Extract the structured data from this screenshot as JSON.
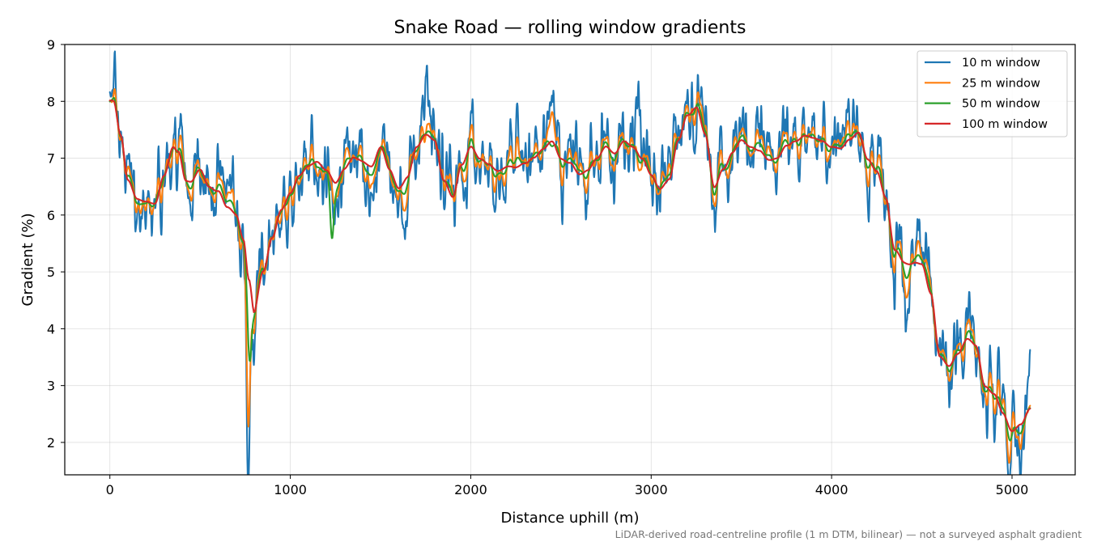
{
  "chart_data": {
    "type": "line",
    "title": "Snake Road — rolling window gradients",
    "xlabel": "Distance uphill (m)",
    "ylabel": "Gradient (%)",
    "xlim": [
      -250,
      5350
    ],
    "ylim": [
      1.43,
      9.0
    ],
    "x_ticks": [
      0,
      1000,
      2000,
      3000,
      4000,
      5000
    ],
    "y_ticks": [
      2,
      3,
      4,
      5,
      6,
      7,
      8,
      9
    ],
    "grid": true,
    "legend_position": "top-right",
    "caption": "LiDAR-derived road-centreline profile (1 m DTM, bilinear) — not a surveyed asphalt gradient",
    "trend_profile": [
      [
        0,
        8.0
      ],
      [
        20,
        8.0
      ],
      [
        60,
        7.4
      ],
      [
        100,
        6.6
      ],
      [
        150,
        6.3
      ],
      [
        200,
        6.25
      ],
      [
        250,
        6.2
      ],
      [
        300,
        6.7
      ],
      [
        350,
        7.2
      ],
      [
        380,
        7.1
      ],
      [
        420,
        6.6
      ],
      [
        450,
        6.6
      ],
      [
        500,
        6.8
      ],
      [
        550,
        6.5
      ],
      [
        600,
        6.4
      ],
      [
        650,
        6.1
      ],
      [
        700,
        6.0
      ],
      [
        740,
        5.6
      ],
      [
        770,
        4.9
      ],
      [
        800,
        4.4
      ],
      [
        850,
        5.0
      ],
      [
        900,
        5.6
      ],
      [
        950,
        6.1
      ],
      [
        1000,
        6.4
      ],
      [
        1050,
        6.7
      ],
      [
        1100,
        6.85
      ],
      [
        1150,
        6.95
      ],
      [
        1200,
        6.8
      ],
      [
        1250,
        6.6
      ],
      [
        1300,
        6.8
      ],
      [
        1350,
        7.0
      ],
      [
        1400,
        6.95
      ],
      [
        1450,
        6.9
      ],
      [
        1500,
        7.2
      ],
      [
        1550,
        6.8
      ],
      [
        1600,
        6.5
      ],
      [
        1650,
        6.7
      ],
      [
        1700,
        7.2
      ],
      [
        1750,
        7.4
      ],
      [
        1800,
        7.3
      ],
      [
        1850,
        6.6
      ],
      [
        1900,
        6.3
      ],
      [
        1950,
        6.9
      ],
      [
        2000,
        7.2
      ],
      [
        2050,
        7.0
      ],
      [
        2100,
        6.9
      ],
      [
        2150,
        6.8
      ],
      [
        2200,
        6.85
      ],
      [
        2250,
        6.8
      ],
      [
        2300,
        6.9
      ],
      [
        2350,
        7.0
      ],
      [
        2400,
        7.15
      ],
      [
        2450,
        7.3
      ],
      [
        2500,
        7.0
      ],
      [
        2550,
        6.9
      ],
      [
        2600,
        6.7
      ],
      [
        2650,
        6.8
      ],
      [
        2700,
        7.0
      ],
      [
        2750,
        7.2
      ],
      [
        2800,
        7.1
      ],
      [
        2850,
        7.3
      ],
      [
        2900,
        7.2
      ],
      [
        2950,
        7.0
      ],
      [
        3000,
        6.7
      ],
      [
        3050,
        6.45
      ],
      [
        3100,
        6.6
      ],
      [
        3150,
        7.3
      ],
      [
        3200,
        7.75
      ],
      [
        3250,
        7.9
      ],
      [
        3300,
        7.4
      ],
      [
        3350,
        6.5
      ],
      [
        3400,
        6.8
      ],
      [
        3450,
        7.1
      ],
      [
        3500,
        7.3
      ],
      [
        3550,
        7.2
      ],
      [
        3600,
        7.1
      ],
      [
        3650,
        6.95
      ],
      [
        3700,
        7.0
      ],
      [
        3750,
        7.2
      ],
      [
        3800,
        7.3
      ],
      [
        3850,
        7.4
      ],
      [
        3900,
        7.35
      ],
      [
        3950,
        7.3
      ],
      [
        4000,
        7.2
      ],
      [
        4050,
        7.15
      ],
      [
        4100,
        7.3
      ],
      [
        4150,
        7.45
      ],
      [
        4200,
        7.0
      ],
      [
        4250,
        6.75
      ],
      [
        4300,
        6.3
      ],
      [
        4350,
        5.4
      ],
      [
        4400,
        5.2
      ],
      [
        4450,
        5.15
      ],
      [
        4500,
        5.1
      ],
      [
        4550,
        4.6
      ],
      [
        4600,
        3.5
      ],
      [
        4650,
        3.35
      ],
      [
        4700,
        3.55
      ],
      [
        4750,
        3.8
      ],
      [
        4800,
        3.7
      ],
      [
        4850,
        3.0
      ],
      [
        4900,
        2.85
      ],
      [
        4950,
        2.5
      ],
      [
        5000,
        2.2
      ],
      [
        5050,
        2.35
      ],
      [
        5100,
        2.6
      ]
    ],
    "series": [
      {
        "name": "10 m window",
        "color": "#1f77b4",
        "window": 10,
        "extrema": [
          [
            20,
            8.25
          ],
          [
            770,
            1.85
          ],
          [
            1750,
            8.4
          ],
          [
            2450,
            8.65
          ],
          [
            2930,
            8.65
          ],
          [
            4990,
            1.75
          ],
          [
            5095,
            3.3
          ]
        ]
      },
      {
        "name": "25 m window",
        "color": "#ff7f0e",
        "window": 25,
        "extrema": [
          [
            770,
            2.55
          ],
          [
            2450,
            8.1
          ],
          [
            3250,
            8.1
          ],
          [
            4990,
            1.95
          ]
        ]
      },
      {
        "name": "50 m window",
        "color": "#2ca02c",
        "window": 50,
        "extrema": [
          [
            775,
            3.5
          ],
          [
            1230,
            5.7
          ],
          [
            3250,
            8.0
          ],
          [
            4995,
            2.05
          ]
        ]
      },
      {
        "name": "100 m window",
        "color": "#d62728",
        "window": 100,
        "extrema": [
          [
            800,
            4.3
          ],
          [
            3250,
            7.9
          ],
          [
            5000,
            2.2
          ]
        ]
      }
    ]
  }
}
